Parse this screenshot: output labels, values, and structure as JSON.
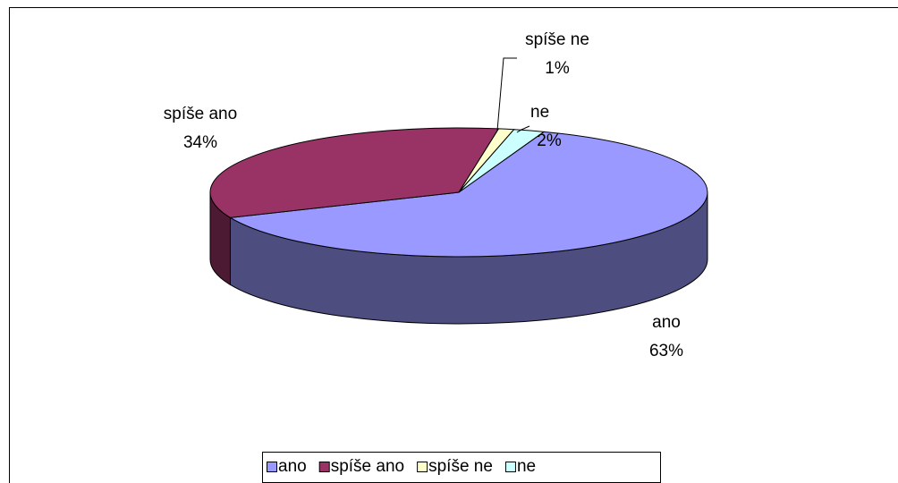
{
  "chart_data": {
    "type": "pie",
    "categories": [
      "ano",
      "spíše ano",
      "spíše ne",
      "ne"
    ],
    "values": [
      63,
      34,
      1,
      2
    ],
    "value_labels": [
      "63%",
      "34%",
      "1%",
      "2%"
    ],
    "colors": [
      "#9999ff",
      "#993366",
      "#ffffcc",
      "#ccffff"
    ],
    "legend": "bottom"
  }
}
